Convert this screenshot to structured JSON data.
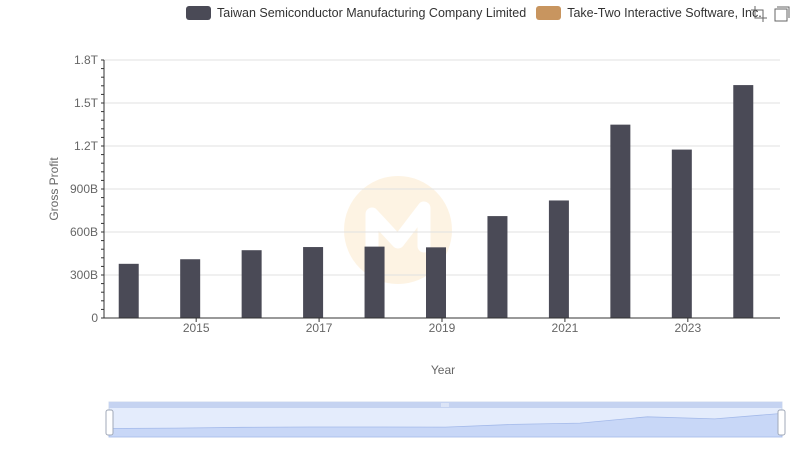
{
  "chart_data": {
    "type": "bar",
    "xlabel": "Year",
    "ylabel": "Gross Profit",
    "ylim": [
      0,
      1800000000000
    ],
    "y_ticks": [
      {
        "value": 0,
        "label": "0"
      },
      {
        "value": 300000000000,
        "label": "300B"
      },
      {
        "value": 600000000000,
        "label": "600B"
      },
      {
        "value": 900000000000,
        "label": "900B"
      },
      {
        "value": 1200000000000,
        "label": "1.2T"
      },
      {
        "value": 1500000000000,
        "label": "1.5T"
      },
      {
        "value": 1800000000000,
        "label": "1.8T"
      }
    ],
    "categories": [
      "2014",
      "2015",
      "2016",
      "2017",
      "2018",
      "2019",
      "2020",
      "2021",
      "2022",
      "2023",
      "2024"
    ],
    "x_tick_labels": [
      "2015",
      "2017",
      "2019",
      "2021",
      "2023"
    ],
    "series": [
      {
        "name": "Taiwan Semiconductor Manufacturing Company Limited",
        "color": "#4a4a56",
        "values": [
          378000000000,
          410000000000,
          473000000000,
          495000000000,
          498000000000,
          493000000000,
          711000000000,
          820000000000,
          1349000000000,
          1175000000000,
          1625000000000
        ]
      },
      {
        "name": "Take-Two Interactive Software, Inc.",
        "color": "#c8955f",
        "values": [
          400000000.0,
          600000000.0,
          600000000.0,
          900000000.0,
          1100000000.0,
          1400000000.0,
          1600000000.0,
          1800000000.0,
          1600000000.0,
          2000000000.0,
          2300000000.0
        ]
      }
    ],
    "grid": true,
    "legend_position": "top",
    "data_zoom": {
      "start": 0,
      "end": 100
    }
  },
  "colors": {
    "grid": "#e0e0e0",
    "axis": "#333333",
    "zoom_fill": "#d4e0f9",
    "zoom_border": "#c5d3f1"
  },
  "icons": {
    "zoom": "zoom-icon",
    "restore": "restore-icon"
  }
}
